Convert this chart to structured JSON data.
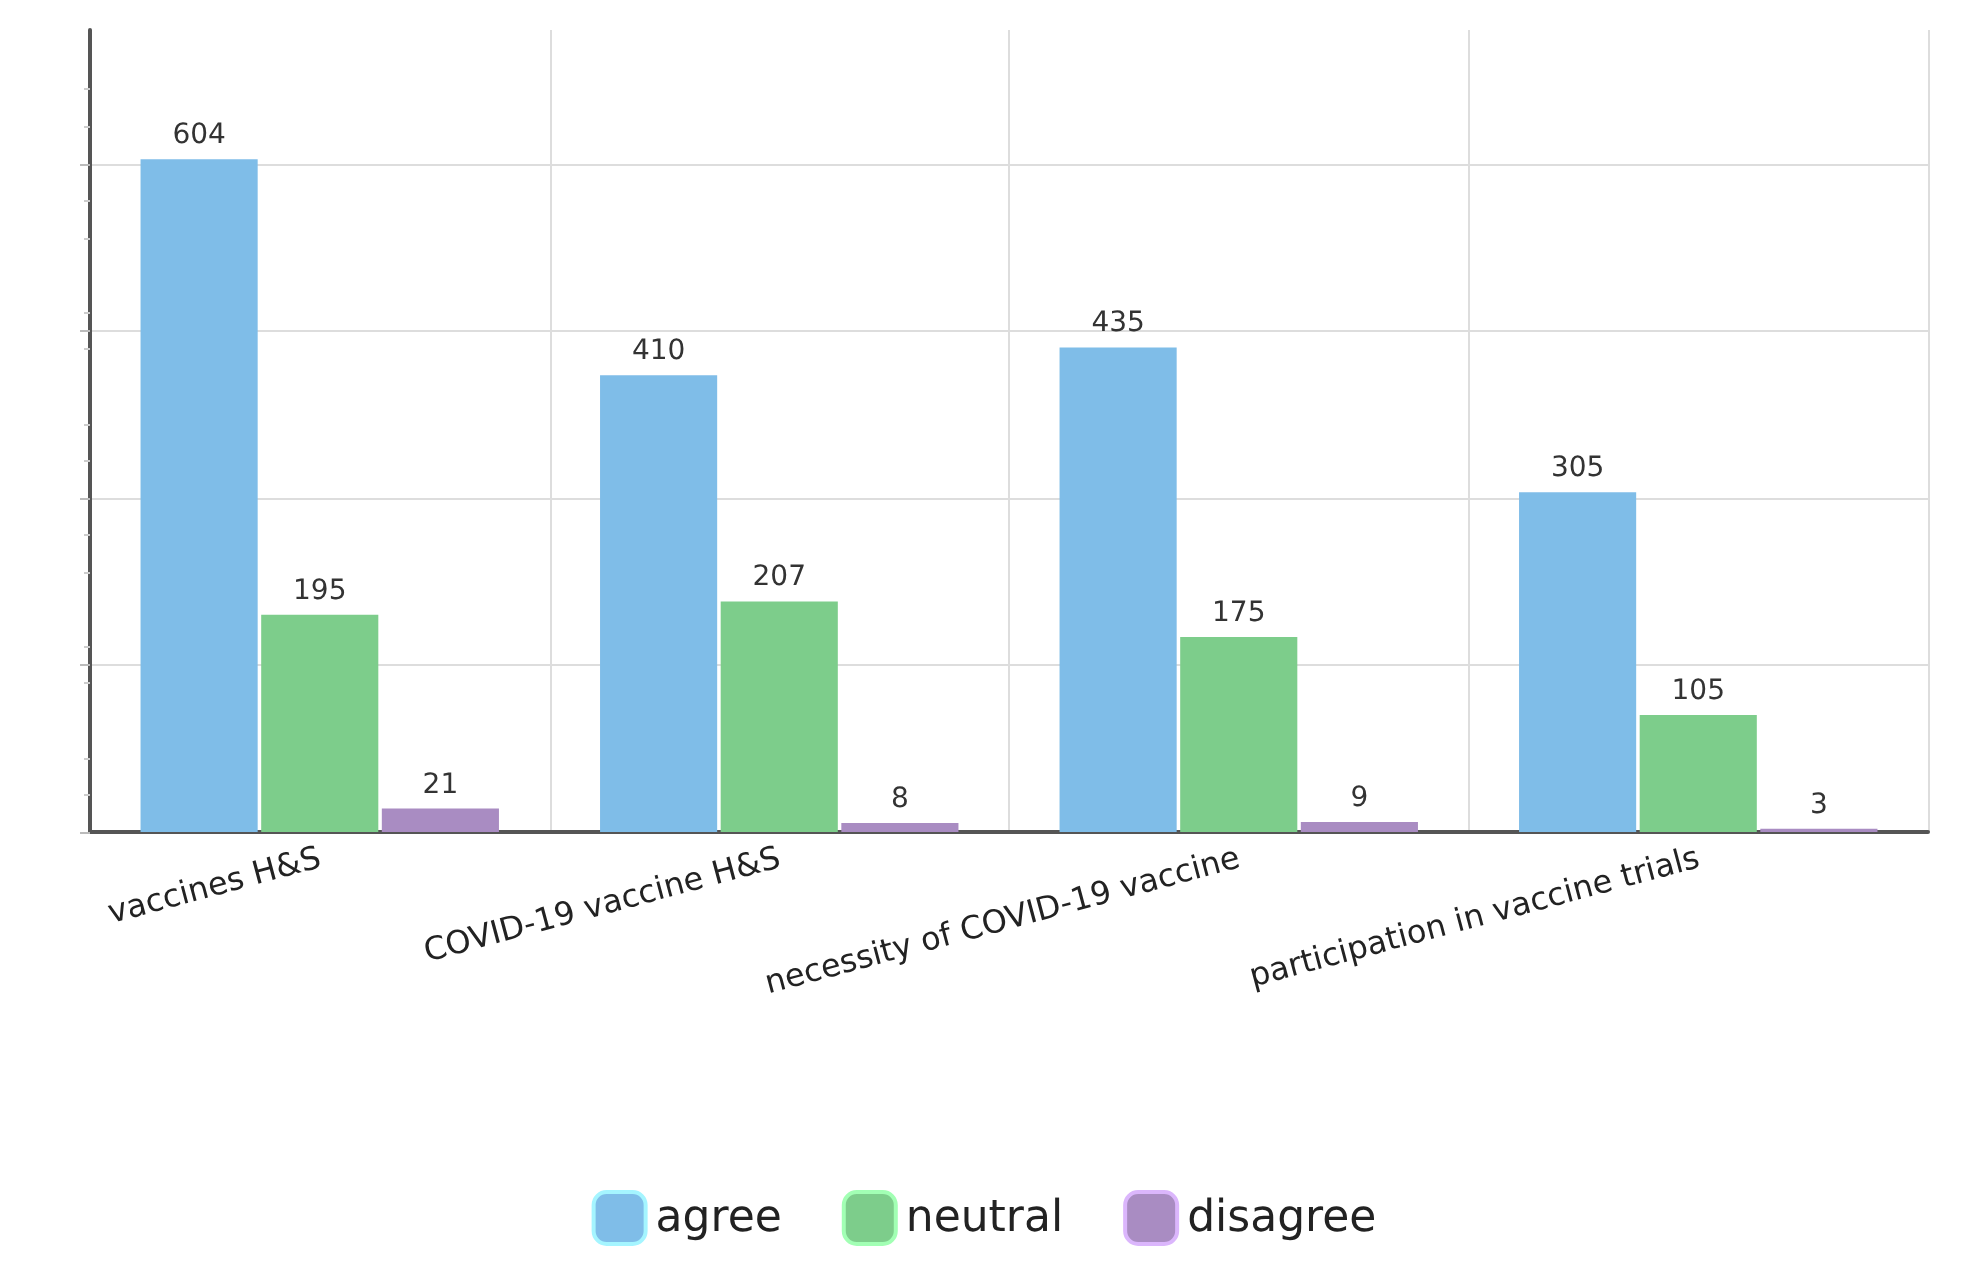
{
  "chart_data": {
    "type": "bar",
    "categories": [
      "vaccines H&S",
      "COVID-19 vaccine H&S",
      "necessity of COVID-19 vaccine",
      "participation in vaccine trials"
    ],
    "series": [
      {
        "name": "agree",
        "color": "#7fbde8",
        "values": [
          604,
          410,
          435,
          305
        ]
      },
      {
        "name": "neutral",
        "color": "#7dcd8b",
        "values": [
          195,
          207,
          175,
          105
        ]
      },
      {
        "name": "disagree",
        "color": "#a98cc2",
        "values": [
          21,
          8,
          9,
          3
        ]
      }
    ],
    "ylim": [
      0,
      720
    ],
    "yticks": [
      {
        "value": 0,
        "label": null
      },
      {
        "value": 150,
        "label": null
      },
      {
        "value": 300,
        "label": null
      },
      {
        "value": 450,
        "label": null
      },
      {
        "value": 600,
        "label": null
      }
    ],
    "tick_labels": "x",
    "data_labels": true,
    "grid": true,
    "legend": "bottom"
  }
}
